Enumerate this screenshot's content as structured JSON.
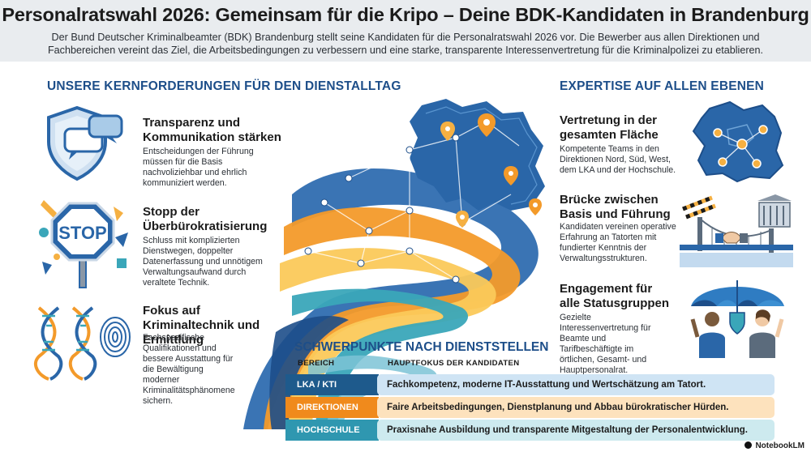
{
  "header": {
    "title": "Personalratswahl 2026: Gemeinsam für die Kripo – Deine BDK-Kandidaten in Brandenburg",
    "subtitle": "Der Bund Deutscher Kriminalbeamter (BDK) Brandenburg stellt seine Kandidaten für die Personalratswahl 2026 vor. Die Bewerber aus allen Direktionen und Fachbereichen vereint das Ziel, die Arbeitsbedingungen zu verbessern und eine starke, transparente Interessenvertretung für die Kriminalpolizei zu etablieren."
  },
  "left": {
    "heading": "UNSERE KERNFORDERUNGEN FÜR DEN DIENSTALLTAG",
    "items": [
      {
        "title": "Transparenz und Kommunikation stärken",
        "text": "Entscheidungen der Führung müssen für die Basis nachvoliziehbar und ehrlich kommuniziert werden.",
        "icon": "shield-speech-bubble-icon"
      },
      {
        "title": "Stopp der Überbürokratisierung",
        "text": "Schluss mit komplizierten Dienstwegen, doppelter Datenerfassung und unnötigem Verwaltungsaufwand durch veraltete Technik.",
        "icon": "stop-sign-icon",
        "icon_text": "STOP"
      },
      {
        "title": "Fokus auf Kriminaltechnik und Ermittlung",
        "text": "Fachspezifische Qualifikationen und bessere Ausstattung für die Bewältigung moderner Kriminalitätsphänomene sichern.",
        "icon": "dna-fingerprint-icon"
      }
    ]
  },
  "right": {
    "heading": "EXPERTISE AUF ALLEN EBENEN",
    "items": [
      {
        "title": "Vertretung in der gesamten Fläche",
        "text": "Kompetente Teams in den Direktionen Nord, Süd, West, dem LKA und der Hochschule.",
        "icon": "brandenburg-map-icon"
      },
      {
        "title": "Brücke zwischen Basis und Führung",
        "text": "Kandidaten vereinen operative Erfahrung an Tatorten mit fundierter Kenntnis der Verwaltungsstrukturen.",
        "icon": "bridge-handshake-icon"
      },
      {
        "title": "Engagement für alle Statusgruppen",
        "text": "Gezielte Interessenvertretung für Beamte und Tarifbeschäftigte im örtlichen, Gesamt- und Hauptpersonalrat.",
        "icon": "umbrella-people-icon"
      }
    ]
  },
  "table": {
    "heading": "SCHWERPUNKTE NACH DIENSTSTELLEN",
    "col_area": "BEREICH",
    "col_focus": "HAUPTFOKUS DER KANDIDATEN",
    "rows": [
      {
        "area": "LKA / KTI",
        "focus": "Fachkompetenz, moderne IT-Ausstattung und Wertschätzung am Tatort.",
        "color": "#1e5a8c",
        "bg": "#cfe4f4"
      },
      {
        "area": "DIREKTIONEN",
        "focus": "Faire Arbeitsbedingungen, Dienstplanung und Abbau bürokratischer Hürden.",
        "color": "#f08a1c",
        "bg": "#fde2bd"
      },
      {
        "area": "HOCHSCHULE",
        "focus": "Praxisnahe Ausbildung und transparente Mitgestaltung der Personalentwicklung.",
        "color": "#2f97b0",
        "bg": "#cdeaef"
      }
    ]
  },
  "colors": {
    "navy": "#1d4e89",
    "orange": "#f5a623",
    "teal": "#3aa6b9",
    "yellow": "#fbc95a"
  },
  "footer": {
    "brand": "NotebookLM"
  }
}
